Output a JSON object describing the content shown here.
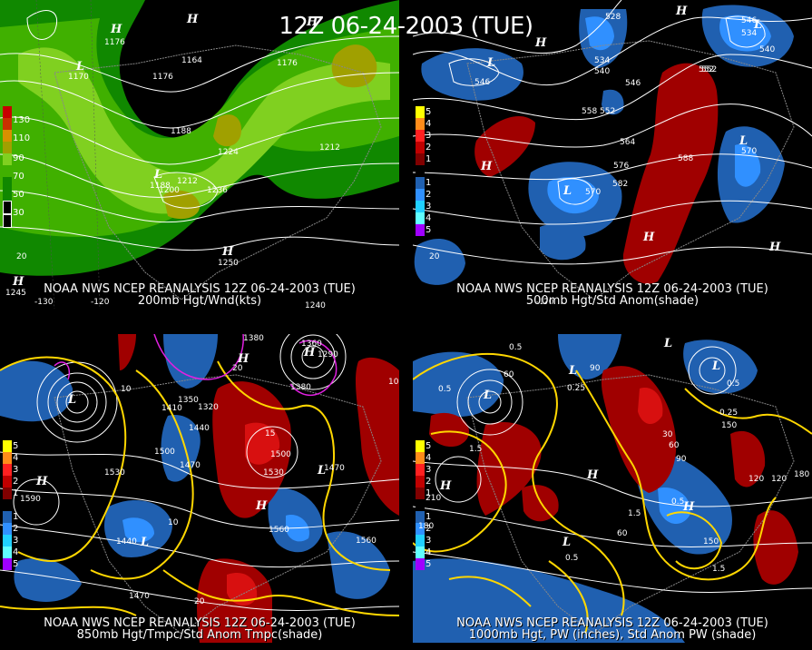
{
  "title": "12Z 06-24-2003 (TUE)",
  "panels": [
    {
      "line1": "NOAA NWS NCEP REANALYSIS 12Z 06-24-2003 (TUE)",
      "line2": "200mb Hgt/Wnd(kts)",
      "legend": [
        "130",
        "110",
        "90",
        "70",
        "50",
        "30"
      ],
      "legend_colors": [
        "#c80000",
        "#d89000",
        "#a0a000",
        "#80d020",
        "#40b000",
        "#108800"
      ],
      "contour_labels": [
        "1176",
        "1164",
        "1176",
        "1176",
        "1170",
        "1188",
        "1188",
        "1200",
        "1212",
        "1224",
        "1236",
        "1212",
        "1250",
        "1245",
        "1240"
      ],
      "hl": [
        "H",
        "L",
        "H",
        "L",
        "H",
        "H",
        "H"
      ],
      "lon": [
        "-130",
        "-120",
        "20"
      ]
    },
    {
      "line1": "NOAA NWS NCEP REANALYSIS 12Z 06-24-2003 (TUE)",
      "line2": "500mb Hgt/Std Anom(shade)",
      "legend": [
        "5",
        "4",
        "3",
        "2",
        "1",
        "",
        "1",
        "2",
        "3",
        "4",
        "5"
      ],
      "legend_colors": [
        "#ffff00",
        "#ff8c1a",
        "#ff2020",
        "#c00000",
        "#800000",
        "#000000",
        "#2060b0",
        "#3090ff",
        "#20d0ff",
        "#60ffff",
        "#a000ff"
      ],
      "contour_labels": [
        "528",
        "534",
        "540",
        "546",
        "552",
        "546",
        "558",
        "552",
        "564",
        "570",
        "576",
        "582",
        "588",
        "546",
        "534",
        "540",
        "552",
        "570",
        "20"
      ],
      "hl": [
        "H",
        "L",
        "H",
        "L",
        "H",
        "L",
        "H",
        "L",
        "H"
      ],
      "lon": [
        "-120"
      ]
    },
    {
      "line1": "NOAA NWS NCEP REANALYSIS 12Z 06-24-2003 (TUE)",
      "line2": "850mb Hgt/Tmpc/Std Anom Tmpc(shade)",
      "legend": [
        "5",
        "4",
        "3",
        "2",
        "1",
        "",
        "1",
        "2",
        "3",
        "4",
        "5"
      ],
      "legend_colors": [
        "#ffff00",
        "#ff8c1a",
        "#ff2020",
        "#c00000",
        "#800000",
        "#000000",
        "#2060b0",
        "#3090ff",
        "#20d0ff",
        "#60ffff",
        "#a000ff"
      ],
      "contour_labels": [
        "1380",
        "1360",
        "1290",
        "1380",
        "1350",
        "1320",
        "1410",
        "1440",
        "1500",
        "1530",
        "1500",
        "1530",
        "1470",
        "1590",
        "1470",
        "1440",
        "1560",
        "1560",
        "1470",
        "10",
        "15",
        "20",
        "10",
        "10",
        "20"
      ],
      "hl": [
        "H",
        "L",
        "H",
        "L",
        "H",
        "L",
        "H"
      ],
      "lon": []
    },
    {
      "line1": "NOAA NWS NCEP REANALYSIS 12Z 06-24-2003 (TUE)",
      "line2": "1000mb Hgt, PW (inches), Std Anom PW (shade)",
      "legend": [
        "5",
        "4",
        "3",
        "2",
        "1",
        "",
        "1",
        "2",
        "3",
        "4",
        "5"
      ],
      "legend_colors": [
        "#ffff00",
        "#ff8c1a",
        "#ff2020",
        "#c00000",
        "#800000",
        "#000000",
        "#2060b0",
        "#3090ff",
        "#20d0ff",
        "#60ffff",
        "#a000ff"
      ],
      "contour_labels": [
        "0.5",
        "1.5",
        "0.25",
        "0.5",
        "60",
        "90",
        "30",
        "60",
        "90",
        "120",
        "180",
        "150",
        "150",
        "1.5",
        "0.5",
        "0.25",
        "0.5",
        "1.5",
        "60",
        "120",
        "210",
        "180",
        "0.5"
      ],
      "hl": [
        "L",
        "L",
        "H",
        "L",
        "H",
        "L",
        "L",
        "H"
      ],
      "lon": []
    }
  ]
}
